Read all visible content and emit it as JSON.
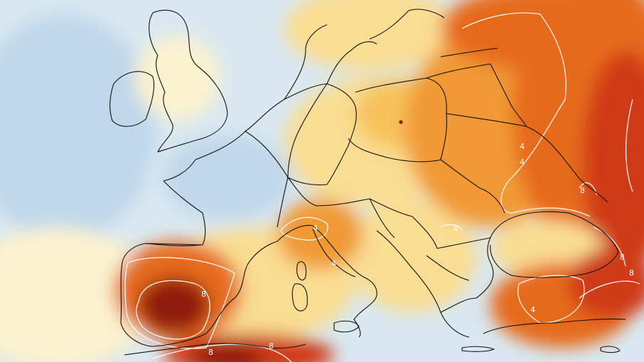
{
  "map": {
    "region": "Europe",
    "colors": {
      "cold_light": "#d9e8f1",
      "cold": "#c0d8ea",
      "neutral": "#fbf2cf",
      "warm_light": "#f9dd92",
      "warm": "#f6c25a",
      "warmer": "#f19a34",
      "hot": "#e66a1b",
      "hotter": "#cf3b13",
      "extreme": "#8f1a0d",
      "border_line": "#111111",
      "contour_line": "#ffffff",
      "city_marker": "#a01010"
    },
    "contour_labels": [
      {
        "id": "label-4-ukraine",
        "text": "4"
      },
      {
        "id": "label-4-south-ukraine",
        "text": "4"
      },
      {
        "id": "label-4-romania",
        "text": "4"
      },
      {
        "id": "label-4-alps",
        "text": "4"
      },
      {
        "id": "label-4-italy",
        "text": "4"
      },
      {
        "id": "label-4-turkey",
        "text": "4"
      },
      {
        "id": "label-8-spain",
        "text": "8"
      },
      {
        "id": "label-8-north-africa",
        "text": "8"
      },
      {
        "id": "label-8-north-africa-2",
        "text": "8"
      },
      {
        "id": "label-8-russia",
        "text": "8"
      },
      {
        "id": "label-8-caucasus",
        "text": "8"
      },
      {
        "id": "label-8-turkey-east",
        "text": "8"
      }
    ],
    "marker": {
      "name": "city-marker"
    }
  }
}
